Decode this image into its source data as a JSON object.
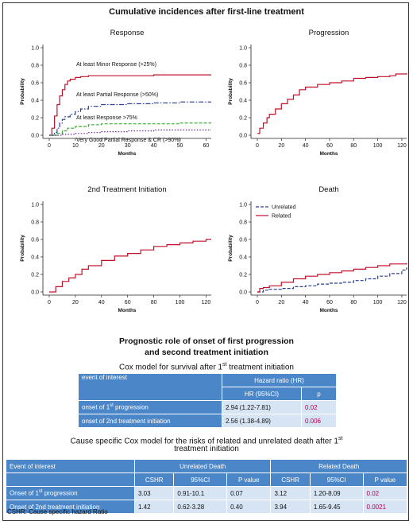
{
  "main_title": "Cumulative incidences after first-line treatment",
  "chart_data": [
    {
      "type": "line",
      "title": "Response",
      "xlabel": "Months",
      "ylabel": "Probability",
      "xlim": [
        0,
        62
      ],
      "ylim": [
        0,
        1.0
      ],
      "xticks": [
        0,
        10,
        20,
        30,
        40,
        50,
        60
      ],
      "yticks": [
        0.0,
        0.2,
        0.4,
        0.6,
        0.8,
        1.0
      ],
      "series": [
        {
          "name": "At least Minor Response (>25%)",
          "color": "#c0102a",
          "dash": "solid",
          "x": [
            0,
            1,
            2,
            3,
            4,
            5,
            6,
            7,
            8,
            10,
            12,
            15,
            20,
            30,
            40,
            50,
            62
          ],
          "y": [
            0,
            0.08,
            0.22,
            0.35,
            0.45,
            0.52,
            0.58,
            0.62,
            0.64,
            0.66,
            0.67,
            0.68,
            0.68,
            0.68,
            0.69,
            0.69,
            0.69
          ]
        },
        {
          "name": "At least Partial Response (>50%)",
          "color": "#2a3f8f",
          "dash": "dashdot",
          "x": [
            0,
            2,
            3,
            4,
            5,
            6,
            8,
            10,
            12,
            15,
            20,
            30,
            40,
            50,
            62
          ],
          "y": [
            0,
            0.03,
            0.08,
            0.14,
            0.18,
            0.21,
            0.24,
            0.27,
            0.3,
            0.33,
            0.35,
            0.36,
            0.37,
            0.38,
            0.38
          ]
        },
        {
          "name": "At least Response >75%",
          "color": "#3aaa35",
          "dash": "dashed",
          "x": [
            0,
            3,
            5,
            7,
            10,
            15,
            20,
            30,
            40,
            50,
            62
          ],
          "y": [
            0,
            0.02,
            0.05,
            0.08,
            0.1,
            0.12,
            0.13,
            0.13,
            0.13,
            0.14,
            0.14
          ]
        },
        {
          "name": "Very Good Partial Response & CR (>90%)",
          "color": "#6a2c91",
          "dash": "dotted",
          "x": [
            0,
            5,
            10,
            15,
            20,
            30,
            40,
            50,
            62
          ],
          "y": [
            0,
            0.01,
            0.02,
            0.03,
            0.04,
            0.05,
            0.06,
            0.06,
            0.06
          ]
        }
      ]
    },
    {
      "type": "line",
      "title": "Progression",
      "xlabel": "Months",
      "ylabel": "Probability",
      "xlim": [
        0,
        124
      ],
      "ylim": [
        0,
        1.0
      ],
      "xticks": [
        0,
        20,
        40,
        60,
        80,
        100,
        120
      ],
      "yticks": [
        0.0,
        0.2,
        0.4,
        0.6,
        0.8,
        1.0
      ],
      "series": [
        {
          "name": "",
          "color": "#c0102a",
          "dash": "solid",
          "x": [
            0,
            2,
            5,
            8,
            10,
            15,
            20,
            25,
            30,
            35,
            40,
            50,
            60,
            70,
            80,
            90,
            100,
            110,
            115,
            124
          ],
          "y": [
            0.02,
            0.08,
            0.14,
            0.2,
            0.24,
            0.3,
            0.36,
            0.41,
            0.46,
            0.52,
            0.55,
            0.58,
            0.6,
            0.62,
            0.65,
            0.66,
            0.67,
            0.68,
            0.7,
            0.71
          ]
        }
      ]
    },
    {
      "type": "line",
      "title": "2nd Treatment Initiation",
      "xlabel": "Months",
      "ylabel": "Probability",
      "xlim": [
        0,
        124
      ],
      "ylim": [
        0,
        1.0
      ],
      "xticks": [
        0,
        20,
        40,
        60,
        80,
        100,
        120
      ],
      "yticks": [
        0.0,
        0.2,
        0.4,
        0.6,
        0.8,
        1.0
      ],
      "series": [
        {
          "name": "",
          "color": "#c0102a",
          "dash": "solid",
          "x": [
            0,
            5,
            10,
            15,
            20,
            25,
            30,
            40,
            50,
            60,
            70,
            80,
            90,
            100,
            110,
            120,
            124
          ],
          "y": [
            0,
            0.06,
            0.12,
            0.16,
            0.2,
            0.26,
            0.3,
            0.36,
            0.41,
            0.44,
            0.48,
            0.52,
            0.54,
            0.56,
            0.58,
            0.6,
            0.6
          ]
        }
      ]
    },
    {
      "type": "line",
      "title": "Death",
      "xlabel": "Months",
      "ylabel": "Probability",
      "xlim": [
        0,
        124
      ],
      "ylim": [
        0,
        1.0
      ],
      "xticks": [
        0,
        20,
        40,
        60,
        80,
        100,
        120
      ],
      "yticks": [
        0.0,
        0.2,
        0.4,
        0.6,
        0.8,
        1.0
      ],
      "legend": "top-left",
      "series": [
        {
          "name": "Unrelated",
          "color": "#2a3f8f",
          "dash": "dashed",
          "x": [
            0,
            5,
            10,
            20,
            30,
            40,
            50,
            60,
            70,
            80,
            90,
            100,
            110,
            120,
            124
          ],
          "y": [
            0,
            0.02,
            0.03,
            0.04,
            0.06,
            0.07,
            0.09,
            0.1,
            0.11,
            0.13,
            0.15,
            0.18,
            0.21,
            0.25,
            0.28
          ]
        },
        {
          "name": "Related",
          "color": "#c0102a",
          "dash": "solid",
          "x": [
            0,
            2,
            5,
            10,
            20,
            30,
            40,
            50,
            60,
            70,
            80,
            90,
            100,
            110,
            124
          ],
          "y": [
            0,
            0.04,
            0.05,
            0.07,
            0.11,
            0.15,
            0.18,
            0.2,
            0.22,
            0.24,
            0.26,
            0.28,
            0.3,
            0.32,
            0.33
          ]
        }
      ]
    }
  ],
  "section2": {
    "title_line1": "Prognostic role of onset of first progression",
    "title_line2": "and second treatment initiation"
  },
  "cox_table": {
    "caption_pre": "Cox model for survival after 1",
    "caption_sup": "st",
    "caption_post": " treatment initiation",
    "head_event": "event of interest",
    "head_hr": "Hazard ratio (HR)",
    "head_hr_ci": "HR (95%CI)",
    "head_p": "p",
    "rows": [
      {
        "label_pre": "onset of 1",
        "label_sup": "st",
        "label_post": " progression",
        "hr": "2.94 (1.22-7.81)",
        "p": "0.02"
      },
      {
        "label_pre": "onset of 2nd treatment initiation",
        "label_sup": "",
        "label_post": "",
        "hr": "2.56 (1.38-4.89)",
        "p": "0.006"
      }
    ]
  },
  "cs_table": {
    "caption_line1_pre": "Cause specific Cox model for the risks of related and unrelated death after 1",
    "caption_line1_sup": "st",
    "caption_line2": "treatment initiation",
    "head_event": "Event of interest",
    "head_unrelated": "Unrelated Death",
    "head_related": "Related Death",
    "sub_cshr": "CSHR",
    "sub_ci": "95%CI",
    "sub_p": "P value",
    "rows": [
      {
        "label_pre": "Onset of 1",
        "label_sup": "st",
        "label_post": " progression",
        "u_cshr": "3.03",
        "u_ci": "0.91-10.1",
        "u_p": "0.07",
        "r_cshr": "3.12",
        "r_ci": "1.20-8.09",
        "r_p": "0.02"
      },
      {
        "label_pre": "Onset of 2nd treatment initiation",
        "label_sup": "",
        "label_post": "",
        "u_cshr": "1.42",
        "u_ci": "0.62-3.28",
        "u_p": "0.40",
        "r_cshr": "3.94",
        "r_ci": "1.65-9.45",
        "r_p": "0.0021"
      }
    ]
  },
  "footnote": "CSHR: Cause specific hazard Ratio",
  "response_labels": [
    "At least Minor Response (>25%)",
    "At least Partial Response (>50%)",
    "At least Response >75%",
    "Very Good Partial Response & CR (>90%)"
  ]
}
